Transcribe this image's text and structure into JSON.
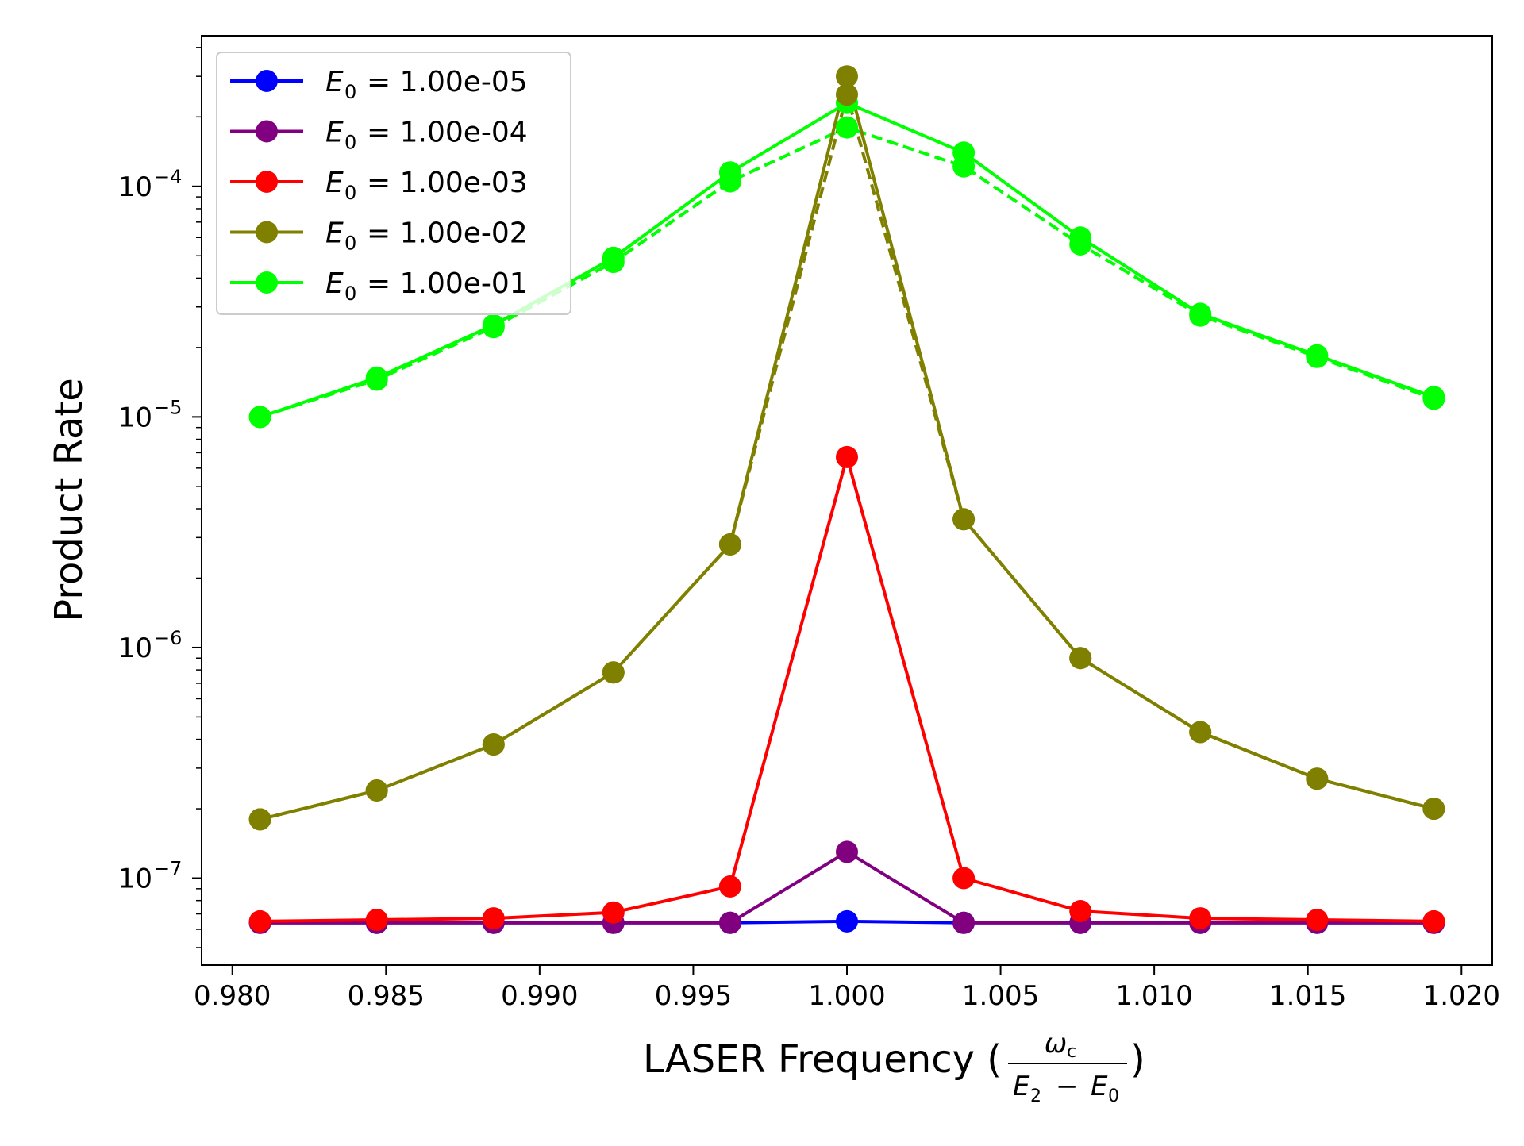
{
  "chart_data": {
    "type": "line",
    "title": "",
    "xlabel": "LASER Frequency",
    "xlabel_fraction": {
      "numerator": "ω",
      "numerator_sub": "c",
      "denominator_a": "E",
      "denominator_a_sub": "2",
      "denominator_op": "−",
      "denominator_b": "E",
      "denominator_b_sub": "0"
    },
    "ylabel": "Product Rate",
    "xlim": [
      0.979,
      1.021
    ],
    "ylim": [
      4.2e-08,
      0.00045
    ],
    "yscale": "log",
    "grid": false,
    "legend_position": "top-left",
    "x": [
      0.9809,
      0.9847,
      0.9885,
      0.9924,
      0.9962,
      1.0,
      1.0038,
      1.0076,
      1.0115,
      1.0153,
      1.0191
    ],
    "x_ticks": [
      "0.980",
      "0.985",
      "0.990",
      "0.995",
      "1.000",
      "1.005",
      "1.010",
      "1.015",
      "1.020"
    ],
    "x_tick_values": [
      0.98,
      0.985,
      0.99,
      0.995,
      1.0,
      1.005,
      1.01,
      1.015,
      1.02
    ],
    "y_ticks": [
      {
        "value": 1e-07,
        "base": "10",
        "exp": "−7"
      },
      {
        "value": 1e-06,
        "base": "10",
        "exp": "−6"
      },
      {
        "value": 1e-05,
        "base": "10",
        "exp": "−5"
      },
      {
        "value": 0.0001,
        "base": "10",
        "exp": "−4"
      }
    ],
    "series": [
      {
        "name": "= 1.00e-05",
        "symbol": "E",
        "sub": "0",
        "color": "#0000ff",
        "values": [
          6.4e-08,
          6.4e-08,
          6.4e-08,
          6.4e-08,
          6.4e-08,
          6.5e-08,
          6.4e-08,
          6.4e-08,
          6.4e-08,
          6.4e-08,
          6.4e-08
        ]
      },
      {
        "name": "= 1.00e-04",
        "symbol": "E",
        "sub": "0",
        "color": "#800080",
        "values": [
          6.4e-08,
          6.4e-08,
          6.4e-08,
          6.4e-08,
          6.4e-08,
          1.3e-07,
          6.4e-08,
          6.4e-08,
          6.4e-08,
          6.4e-08,
          6.4e-08
        ]
      },
      {
        "name": "= 1.00e-03",
        "symbol": "E",
        "sub": "0",
        "color": "#ff0000",
        "values": [
          6.5e-08,
          6.6e-08,
          6.7e-08,
          7.1e-08,
          9.2e-08,
          6.7e-06,
          1e-07,
          7.2e-08,
          6.7e-08,
          6.6e-08,
          6.5e-08
        ]
      },
      {
        "name": "= 1.00e-02",
        "symbol": "E",
        "sub": "0",
        "color": "#808000",
        "values": [
          1.8e-07,
          2.4e-07,
          3.8e-07,
          7.8e-07,
          2.8e-06,
          0.0003,
          3.6e-06,
          9e-07,
          4.3e-07,
          2.7e-07,
          2e-07
        ]
      },
      {
        "name": "= 1.00e-01",
        "symbol": "E",
        "sub": "0",
        "color": "#00ff00",
        "values": [
          1e-05,
          1.48e-05,
          2.5e-05,
          4.9e-05,
          0.000115,
          0.00023,
          0.00014,
          6e-05,
          2.8e-05,
          1.85e-05,
          1.22e-05
        ]
      }
    ],
    "dashed_series": [
      {
        "color": "#808000",
        "values": [
          1.8e-07,
          2.4e-07,
          3.8e-07,
          7.8e-07,
          2.8e-06,
          0.00025,
          3.6e-06,
          9e-07,
          4.3e-07,
          2.7e-07,
          2e-07
        ]
      },
      {
        "color": "#00ff00",
        "values": [
          1e-05,
          1.45e-05,
          2.45e-05,
          4.7e-05,
          0.000105,
          0.00018,
          0.000122,
          5.6e-05,
          2.75e-05,
          1.82e-05,
          1.2e-05
        ]
      }
    ]
  }
}
